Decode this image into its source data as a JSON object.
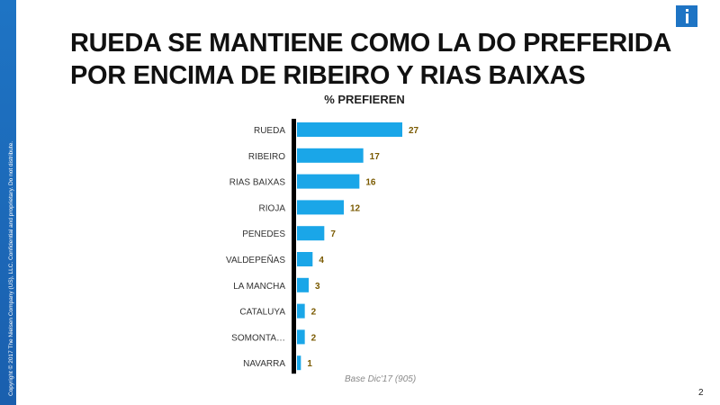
{
  "slide": {
    "title_line1": "RUEDA  SE MANTIENE COMO LA DO PREFERIDA",
    "title_line2": "POR ENCIMA DE RIBEIRO Y RIAS BAIXAS",
    "copyright": "Copyright © 2017 The Nielsen Company (US), LLC. Confidential and proprietary. Do not distribute.",
    "page_number": "2",
    "logo_icon": "nielsen-n-icon",
    "accent_color": "#1e74c4"
  },
  "chart_data": {
    "type": "bar",
    "orientation": "horizontal",
    "title": "% PREFIEREN",
    "categories": [
      "RUEDA",
      "RIBEIRO",
      "RIAS BAIXAS",
      "RIOJA",
      "PENEDES",
      "VALDEPEÑAS",
      "LA MANCHA",
      "CATALUYA",
      "SOMONTA…",
      "NAVARRA"
    ],
    "values": [
      27,
      17,
      16,
      12,
      7,
      4,
      3,
      2,
      2,
      1
    ],
    "xlim": [
      0,
      27
    ],
    "bar_color": "#1aa6e8",
    "label_color": "#7a5a00",
    "footnote": "Base Dic'17 (905)"
  }
}
